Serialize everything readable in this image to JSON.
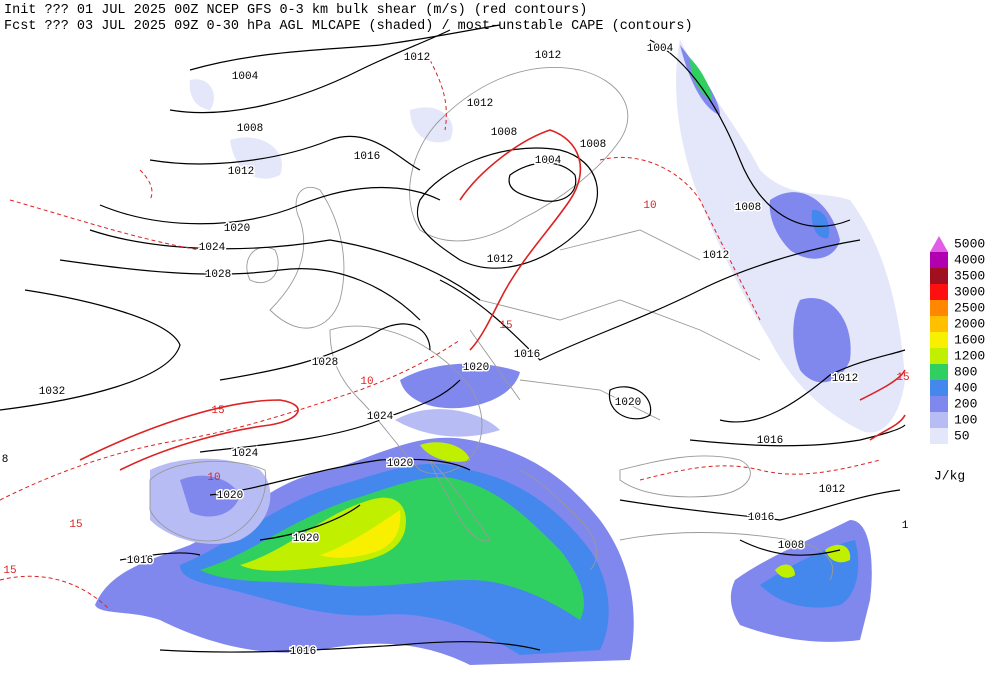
{
  "header": {
    "line1": "Init  ??? 01 JUL 2025 00Z  NCEP GFS 0-3 km bulk shear (m/s) (red contours)",
    "line2": "Fcst ??? 03 JUL 2025 09Z  0-30 hPa AGL MLCAPE (shaded) / most-unstable CAPE (contours)"
  },
  "legend": {
    "unit": "J/kg",
    "levels": [
      {
        "label": "5000",
        "color": "#e35ce8"
      },
      {
        "label": "4000",
        "color": "#b000b0"
      },
      {
        "label": "3500",
        "color": "#a01020"
      },
      {
        "label": "3000",
        "color": "#ff1010"
      },
      {
        "label": "2500",
        "color": "#ff8800"
      },
      {
        "label": "2000",
        "color": "#ffc000"
      },
      {
        "label": "1600",
        "color": "#f8f000"
      },
      {
        "label": "1200",
        "color": "#c0f000"
      },
      {
        "label": "800",
        "color": "#30d060"
      },
      {
        "label": "400",
        "color": "#4488ee"
      },
      {
        "label": "200",
        "color": "#8088ee"
      },
      {
        "label": "100",
        "color": "#b8bcf4"
      },
      {
        "label": "50",
        "color": "#e4e6fa"
      }
    ]
  },
  "isobar_labels": [
    "1004",
    "1008",
    "1012",
    "1020",
    "1024",
    "1028",
    "1032",
    "1028",
    "1024",
    "1020",
    "1024",
    "1020",
    "1020",
    "1016",
    "1016",
    "1012",
    "1012",
    "1008",
    "1004",
    "1008",
    "1016",
    "1012",
    "1016",
    "1020",
    "1020",
    "1012",
    "1008",
    "1004",
    "1012",
    "1012",
    "1016",
    "1012",
    "1016",
    "1008",
    "8",
    "1"
  ],
  "shear_labels": [
    "15",
    "10",
    "15",
    "15",
    "10",
    "15",
    "10",
    "15"
  ]
}
